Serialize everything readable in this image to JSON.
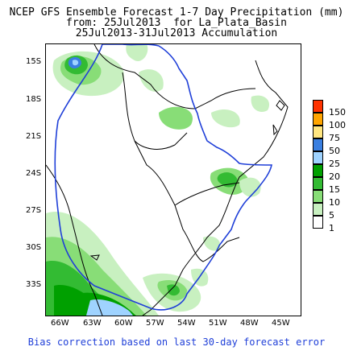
{
  "title": {
    "line1": "NCEP GFS Ensemble Forecast 1-7 Day Precipitation (mm)",
    "line2": "from: 25Jul2013  for La_Plata_Basin",
    "line3": "25Jul2013-31Jul2013 Accumulation"
  },
  "axes": {
    "y_ticks": [
      "15S",
      "18S",
      "21S",
      "24S",
      "27S",
      "30S",
      "33S"
    ],
    "x_ticks": [
      "66W",
      "63W",
      "60W",
      "57W",
      "54W",
      "51W",
      "48W",
      "45W"
    ]
  },
  "legend": {
    "labels": [
      "150",
      "100",
      "75",
      "50",
      "25",
      "20",
      "15",
      "10",
      "5",
      "1"
    ],
    "colors": [
      "#ff3300",
      "#ffa500",
      "#ffe680",
      "#3a7fe0",
      "#9fd3ff",
      "#00a000",
      "#33bb33",
      "#88dd77",
      "#c8f0c0",
      "#ffffff"
    ]
  },
  "colors": {
    "coast": "#000000",
    "basin": "#1f3fd8",
    "border": "#000000"
  },
  "footer": "Bias correction based on last 30-day forecast error"
}
